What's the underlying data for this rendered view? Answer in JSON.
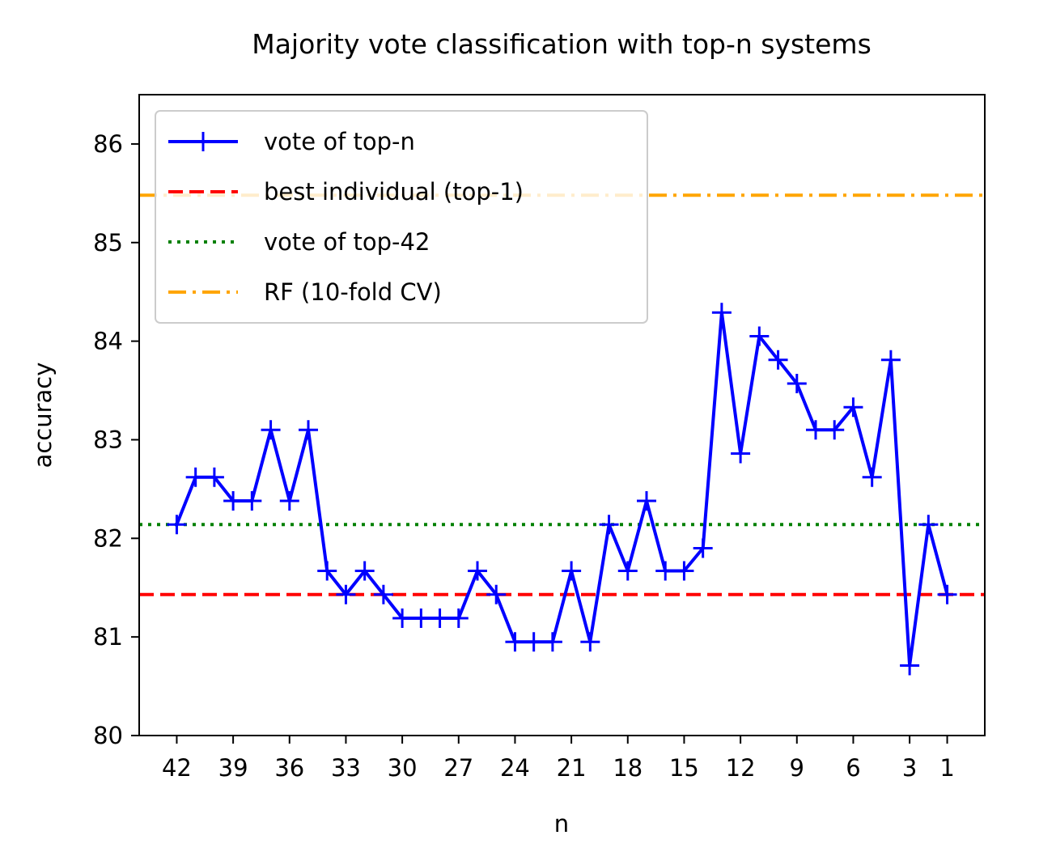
{
  "chart_data": {
    "type": "line",
    "title": "Majority vote classification with top-n systems",
    "xlabel": "n",
    "ylabel": "accuracy",
    "xlim": [
      44,
      -1
    ],
    "ylim": [
      80,
      86.5
    ],
    "x_ticks": [
      42,
      39,
      36,
      33,
      30,
      27,
      24,
      21,
      18,
      15,
      12,
      9,
      6,
      3,
      1
    ],
    "y_ticks": [
      80,
      81,
      82,
      83,
      84,
      85,
      86
    ],
    "legend_position": "upper-left",
    "series": [
      {
        "name": "vote of top-n",
        "style": "solid-plus",
        "color": "#0000ff",
        "x": [
          42,
          41,
          40,
          39,
          38,
          37,
          36,
          35,
          34,
          33,
          32,
          31,
          30,
          29,
          28,
          27,
          26,
          25,
          24,
          23,
          22,
          21,
          20,
          19,
          18,
          17,
          16,
          15,
          14,
          13,
          12,
          11,
          10,
          9,
          8,
          7,
          6,
          5,
          4,
          3,
          2,
          1
        ],
        "y": [
          82.14,
          82.62,
          82.62,
          82.38,
          82.38,
          83.1,
          82.38,
          83.1,
          81.67,
          81.43,
          81.67,
          81.43,
          81.19,
          81.19,
          81.19,
          81.19,
          81.67,
          81.43,
          80.95,
          80.95,
          80.95,
          81.67,
          80.95,
          82.14,
          81.67,
          82.38,
          81.67,
          81.67,
          81.9,
          84.29,
          82.86,
          84.05,
          83.81,
          83.57,
          83.1,
          83.1,
          83.33,
          82.62,
          83.81,
          80.71,
          82.14,
          81.43
        ]
      },
      {
        "name": "best individual (top-1)",
        "style": "dashed",
        "color": "#ff0000",
        "y": 81.43
      },
      {
        "name": "vote of top-42",
        "style": "dotted",
        "color": "#008000",
        "y": 82.14
      },
      {
        "name": "RF (10-fold CV)",
        "style": "dashdot",
        "color": "#ffa500",
        "y": 85.48
      }
    ]
  }
}
